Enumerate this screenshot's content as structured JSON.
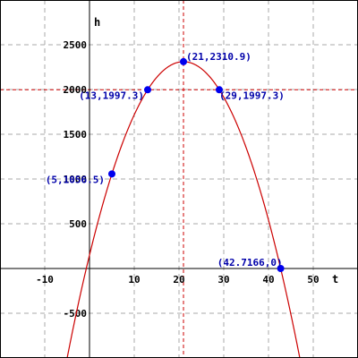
{
  "chart_data": {
    "type": "line",
    "title": "",
    "xlabel": "t",
    "ylabel": "h",
    "xlim": [
      -20,
      60
    ],
    "ylim": [
      -1000,
      3000
    ],
    "x_ticks": [
      -10,
      10,
      20,
      30,
      40,
      50
    ],
    "x_tick_labels": [
      "-10",
      "10",
      "20",
      "30",
      "40",
      "50"
    ],
    "y_ticks": [
      -500,
      500,
      1000,
      1500,
      2000,
      2500
    ],
    "y_tick_labels": [
      "-500",
      "500",
      "1000",
      "1500",
      "2000",
      "2500"
    ],
    "grid": true,
    "grid_step_x": 10,
    "grid_step_y": 500,
    "series": [
      {
        "curve": "h = 2310.9 - 4.9 (t - 21)^2",
        "vertex": [
          21,
          2310.9
        ],
        "a": -4.9,
        "t_range": [
          -5.5,
          47.5
        ],
        "color": "#cc0000"
      }
    ],
    "reference_lines": [
      {
        "orientation": "vertical",
        "value": 21,
        "color": "#cc0000",
        "style": "dashed"
      },
      {
        "orientation": "horizontal",
        "value": 1997.3,
        "color": "#cc0000",
        "style": "dashed"
      }
    ],
    "points": [
      {
        "x": 5,
        "y": 1056.5,
        "label": "(5,1056.5)"
      },
      {
        "x": 13,
        "y": 1997.3,
        "label": "(13,1997.3)"
      },
      {
        "x": 21,
        "y": 2310.9,
        "label": "(21,2310.9)"
      },
      {
        "x": 29,
        "y": 1997.3,
        "label": "(29,1997.3)"
      },
      {
        "x": 42.7166,
        "y": 0,
        "label": "(42.7166,0)"
      }
    ],
    "colors": {
      "curve": "#cc0000",
      "points": "#0000ee",
      "point_labels": "#0000aa",
      "grid": "#aaaaaa",
      "axes": "#000000"
    }
  }
}
